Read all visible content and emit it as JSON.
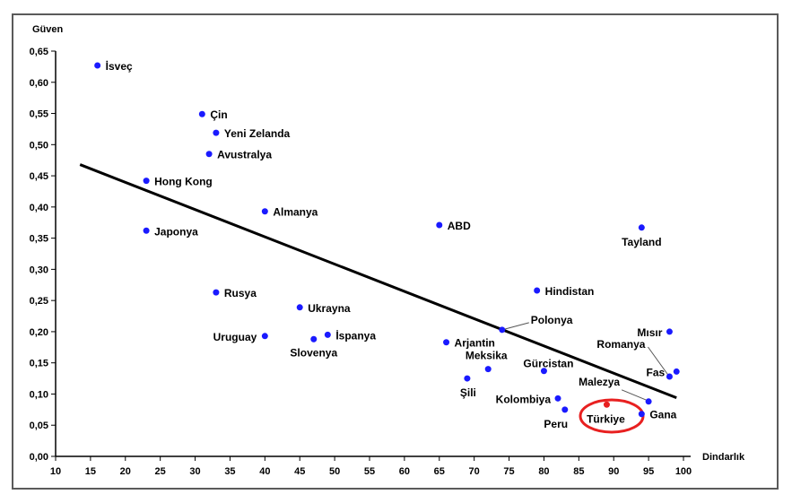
{
  "chart_data": {
    "type": "scatter",
    "xlabel": "Dindarlık",
    "ylabel": "Güven",
    "xlim": [
      10,
      100
    ],
    "ylim": [
      0,
      0.65
    ],
    "xticks": [
      "10",
      "15",
      "20",
      "25",
      "30",
      "35",
      "40",
      "45",
      "50",
      "55",
      "60",
      "65",
      "70",
      "75",
      "80",
      "85",
      "90",
      "95",
      "100"
    ],
    "yticks": [
      "0,00",
      "0,05",
      "0,10",
      "0,15",
      "0,20",
      "0,25",
      "0,30",
      "0,35",
      "0,40",
      "0,45",
      "0,50",
      "0,55",
      "0,60",
      "0,65"
    ],
    "grid": false,
    "point_color": "#1a1aff",
    "highlight_color": "#e82020",
    "trendline": {
      "x1": 13.5,
      "y1": 0.468,
      "x2": 99,
      "y2": 0.094
    },
    "points": [
      {
        "name": "İsveç",
        "x": 16,
        "y": 0.627
      },
      {
        "name": "Çin",
        "x": 31,
        "y": 0.549
      },
      {
        "name": "Yeni Zelanda",
        "x": 33,
        "y": 0.519
      },
      {
        "name": "Avustralya",
        "x": 32,
        "y": 0.485
      },
      {
        "name": "Hong Kong",
        "x": 23,
        "y": 0.442
      },
      {
        "name": "Almanya",
        "x": 40,
        "y": 0.393
      },
      {
        "name": "Japonya",
        "x": 23,
        "y": 0.362
      },
      {
        "name": "ABD",
        "x": 65,
        "y": 0.371
      },
      {
        "name": "Tayland",
        "x": 94,
        "y": 0.367
      },
      {
        "name": "Rusya",
        "x": 33,
        "y": 0.263
      },
      {
        "name": "Hindistan",
        "x": 79,
        "y": 0.266
      },
      {
        "name": "Ukrayna",
        "x": 45,
        "y": 0.239
      },
      {
        "name": "Polonya",
        "x": 74,
        "y": 0.203
      },
      {
        "name": "Mısır",
        "x": 98,
        "y": 0.2
      },
      {
        "name": "Uruguay",
        "x": 40,
        "y": 0.193
      },
      {
        "name": "İspanya",
        "x": 49,
        "y": 0.195
      },
      {
        "name": "Slovenya",
        "x": 47,
        "y": 0.188
      },
      {
        "name": "Arjantin",
        "x": 66,
        "y": 0.183
      },
      {
        "name": "Romanya",
        "x": 98,
        "y": 0.128
      },
      {
        "name": "Meksika",
        "x": 72,
        "y": 0.14
      },
      {
        "name": "Gürcistan",
        "x": 80,
        "y": 0.137
      },
      {
        "name": "Fas",
        "x": 99,
        "y": 0.136
      },
      {
        "name": "Şili",
        "x": 69,
        "y": 0.125
      },
      {
        "name": "Malezya",
        "x": 95,
        "y": 0.088
      },
      {
        "name": "Kolombiya",
        "x": 82,
        "y": 0.093
      },
      {
        "name": "Türkiye",
        "x": 89,
        "y": 0.083,
        "highlight": true
      },
      {
        "name": "Peru",
        "x": 83,
        "y": 0.075
      },
      {
        "name": "Gana",
        "x": 94,
        "y": 0.068
      }
    ]
  }
}
